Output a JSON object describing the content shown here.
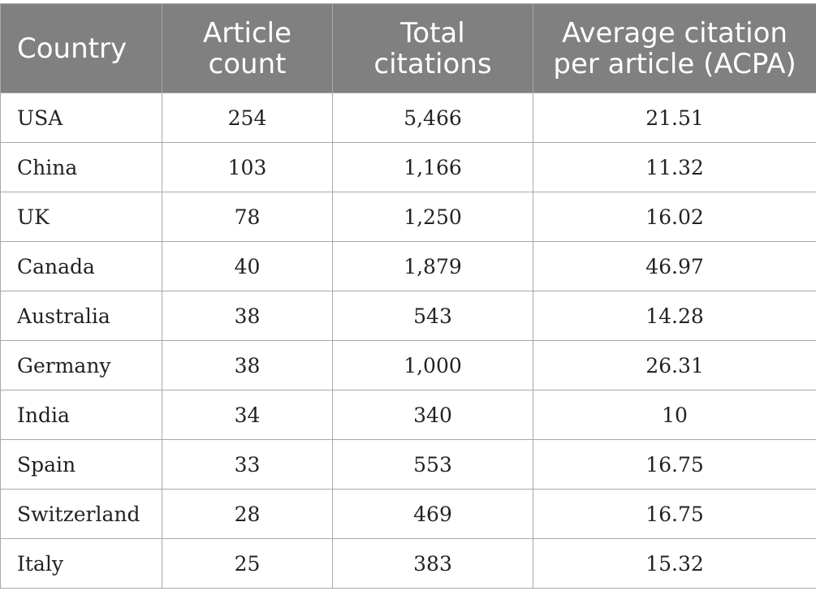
{
  "table": {
    "headers": [
      "Country",
      "Article count",
      "Total citations",
      "Average citation per article (ACPA)"
    ],
    "header_lines": [
      [
        "Country"
      ],
      [
        "Article",
        "count"
      ],
      [
        "Total",
        "citations"
      ],
      [
        "Average citation",
        "per article (ACPA)"
      ]
    ],
    "rows": [
      [
        "USA",
        "254",
        "5,466",
        "21.51"
      ],
      [
        "China",
        "103",
        "1,166",
        "11.32"
      ],
      [
        "UK",
        "78",
        "1,250",
        "16.02"
      ],
      [
        "Canada",
        "40",
        "1,879",
        "46.97"
      ],
      [
        "Australia",
        "38",
        "543",
        "14.28"
      ],
      [
        "Germany",
        "38",
        "1,000",
        "26.31"
      ],
      [
        "India",
        "34",
        "340",
        "10"
      ],
      [
        "Spain",
        "33",
        "553",
        "16.75"
      ],
      [
        "Switzerland",
        "28",
        "469",
        "16.75"
      ],
      [
        "Italy",
        "25",
        "383",
        "15.32"
      ]
    ]
  },
  "colors": {
    "header_bg": "#808080",
    "header_text": "#ffffff",
    "border": "#a8a8a8",
    "cell_text": "#222222"
  }
}
